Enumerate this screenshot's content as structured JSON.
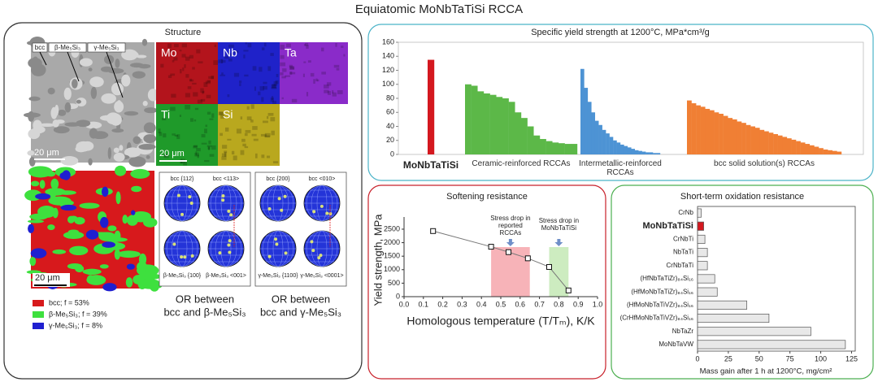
{
  "title": "Equiatomic MoNbTaTiSi RCCA",
  "structure": {
    "title": "Structure",
    "micrograph": {
      "labels": [
        "bcc",
        "β-Me₅Si₃",
        "γ-Me₅Si₃"
      ],
      "scale": "20 μm"
    },
    "maps": {
      "elements": [
        {
          "name": "Mo",
          "color": "#b3141c"
        },
        {
          "name": "Nb",
          "color": "#1f22c9"
        },
        {
          "name": "Ta",
          "color": "#8a2bc9"
        },
        {
          "name": "Ti",
          "color": "#1f9a2a"
        },
        {
          "name": "Si",
          "color": "#b9a81e"
        }
      ],
      "scale": "20 μm"
    },
    "phase_map": {
      "scale": "20 μm",
      "legend": [
        {
          "label": "bcc; f = 53%",
          "color": "#d7191c"
        },
        {
          "label": "β-Me₅Si₃; f = 39%",
          "color": "#3ee03e"
        },
        {
          "label": "γ-Me₅Si₃; f = 8%",
          "color": "#1f1fd0"
        }
      ]
    },
    "pole_figures": [
      {
        "labels": [
          "bcc {112}",
          "bcc <113>",
          "β-Me₅Si₃ {100}",
          "β-Me₅Si₃ <001>"
        ],
        "caption": [
          "OR between",
          "bcc and β-Me₅Si₃"
        ]
      },
      {
        "labels": [
          "bcc {200}",
          "bcc <010>",
          "γ-Me₅Si₃ {1100}",
          "γ-Me₅Si₃ <0001>"
        ],
        "caption": [
          "OR between",
          "bcc and γ-Me₅Si₃"
        ]
      }
    ]
  },
  "chart_data": [
    {
      "type": "bar",
      "title": "Specific yield strength at 1200°C, MPa*cm³/g",
      "ylim": [
        0,
        160
      ],
      "yticks": [
        0,
        20,
        40,
        60,
        80,
        100,
        120,
        140,
        160
      ],
      "series": [
        {
          "name": "MoNbTaTiSi",
          "color": "#d4181f",
          "values": [
            135
          ]
        },
        {
          "name": "Ceramic-reinforced RCCAs",
          "color": "#5cb848",
          "values": [
            100,
            98,
            90,
            87,
            85,
            82,
            80,
            75,
            60,
            52,
            40,
            27,
            22,
            19,
            17,
            16,
            15,
            15
          ]
        },
        {
          "name": "Intermetallic-reinforced RCCAs",
          "color": "#4d93d4",
          "values": [
            122,
            95,
            75,
            60,
            48,
            42,
            35,
            30,
            25,
            20,
            17,
            14,
            12,
            10,
            8,
            6,
            5,
            4,
            3,
            3,
            2,
            2
          ]
        },
        {
          "name": "bcc solid solution(s) RCCAs",
          "color": "#f07f34",
          "values": [
            77,
            73,
            70,
            68,
            65,
            63,
            60,
            58,
            55,
            52,
            50,
            47,
            45,
            42,
            40,
            38,
            35,
            33,
            31,
            29,
            27,
            25,
            23,
            21,
            19,
            17,
            15,
            13,
            11,
            9,
            7,
            6,
            5,
            4
          ]
        }
      ]
    },
    {
      "type": "line",
      "title": "Softening resistance",
      "x": [
        0.15,
        0.45,
        0.54,
        0.64,
        0.75,
        0.85
      ],
      "values": [
        2430,
        1850,
        1650,
        1420,
        1100,
        230
      ],
      "xlim": [
        0,
        1
      ],
      "xticks": [
        {
          "value": 0,
          "label": "0.0"
        },
        {
          "value": 0.1,
          "label": "0.1"
        },
        {
          "value": 0.2,
          "label": "0.2"
        },
        {
          "value": 0.3,
          "label": "0.3"
        },
        {
          "value": 0.4,
          "label": "0.4"
        },
        {
          "value": 0.5,
          "label": "0.5"
        },
        {
          "value": 0.6,
          "label": "0.6"
        },
        {
          "value": 0.7,
          "label": "0.7"
        },
        {
          "value": 0.8,
          "label": "0.8"
        },
        {
          "value": 0.9,
          "label": "0.9"
        },
        {
          "value": 1,
          "label": "1.0"
        }
      ],
      "ylim": [
        0,
        2800
      ],
      "yticks": [
        0,
        500,
        1000,
        1500,
        2000,
        2500
      ],
      "xlabel": "Homologous temperature (T/Tₘ), K/K",
      "ylabel": "Yield strength, MPa",
      "spans": [
        {
          "x": [
            0.45,
            0.65
          ],
          "color": "#f7b3b8",
          "label": "Stress drop in reported RCCAs"
        },
        {
          "x": [
            0.75,
            0.85
          ],
          "color": "#cdecc0",
          "label": "Stress drop in MoNbTaTiSi"
        }
      ]
    },
    {
      "type": "barh",
      "title": "Short-term oxidation resistance",
      "categories": [
        "CrNb",
        "MoNbTaTiSi",
        "CrNbTi",
        "NbTaTi",
        "CrNbTaTi",
        "(HfNbTaTiZr)₈₄Si₁₆",
        "(HfMoNbTaTiZr)₈₄Si₁₆",
        "(HfMoNbTaTiVZr)₈₄Si₁₆",
        "(CrHfMoNbTaTiVZr)₈₄Si₁₆",
        "NbTaZr",
        "MoNbTaVW"
      ],
      "values": [
        3,
        5,
        6,
        8,
        8,
        14,
        16,
        40,
        58,
        92,
        120
      ],
      "colors": [
        "#e8e8e8",
        "#d4181f",
        "#e8e8e8",
        "#e8e8e8",
        "#e8e8e8",
        "#e8e8e8",
        "#e8e8e8",
        "#e8e8e8",
        "#e8e8e8",
        "#e8e8e8",
        "#e8e8e8"
      ],
      "xlim": [
        0,
        128
      ],
      "xticks": [
        0,
        25,
        50,
        75,
        100,
        125
      ],
      "xlabel": "Mass gain after 1 h at 1200°C, mg/cm²"
    }
  ]
}
